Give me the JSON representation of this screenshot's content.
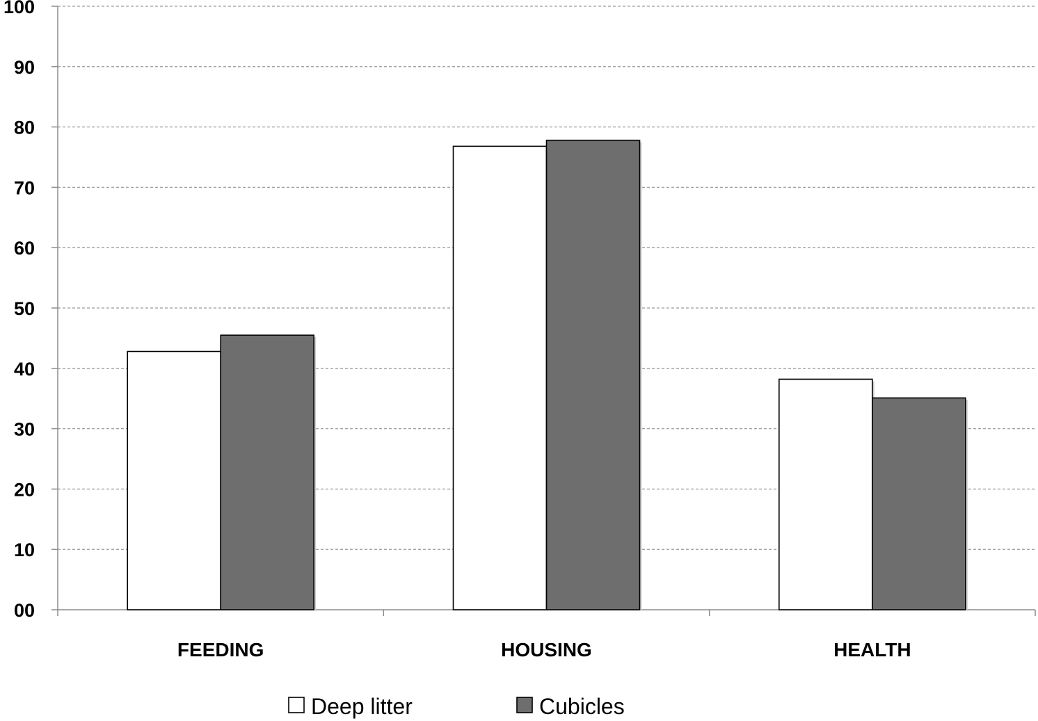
{
  "chart_data": {
    "type": "bar",
    "title": "",
    "xlabel": "",
    "ylabel": "",
    "categories": [
      "FEEDING",
      "HOUSING",
      "HEALTH"
    ],
    "series": [
      {
        "name": "Deep litter",
        "values": [
          42.8,
          76.8,
          38.2
        ],
        "color": "#ffffff"
      },
      {
        "name": "Cubicles",
        "values": [
          45.5,
          77.8,
          35.1
        ],
        "color": "#6e6e6e"
      }
    ],
    "ylim": [
      0,
      100
    ],
    "yticks": [
      0,
      10,
      20,
      30,
      40,
      50,
      60,
      70,
      80,
      90,
      100
    ],
    "ytick_labels": [
      "00",
      "10",
      "20",
      "30",
      "40",
      "50",
      "60",
      "70",
      "80",
      "90",
      "100"
    ],
    "grid": true,
    "grid_style": "dashed",
    "legend_position": "bottom-center",
    "bar_outline_color": "#000000"
  }
}
